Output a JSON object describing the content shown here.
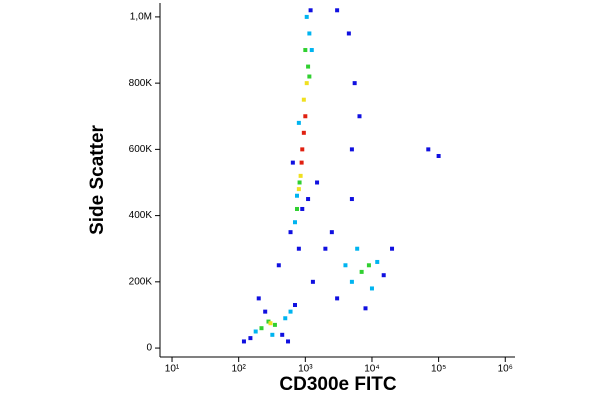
{
  "chart_data": {
    "type": "scatter",
    "x_label": "CD300e FITC",
    "y_label": "Side Scatter",
    "log_x": true,
    "xlim": [
      6.6,
      1400000
    ],
    "xticks": [
      {
        "value": 10,
        "label": "10¹"
      },
      {
        "value": 100,
        "label": "10²"
      },
      {
        "value": 1000,
        "label": "10³"
      },
      {
        "value": 10000,
        "label": "10⁴"
      },
      {
        "value": 100000,
        "label": "10⁵"
      },
      {
        "value": 1000000,
        "label": "10⁶"
      }
    ],
    "ylim": [
      -27000,
      1042000
    ],
    "yticks": [
      0,
      {
        "value": 200000,
        "label": "200K"
      },
      {
        "value": 400000,
        "label": "400K"
      },
      {
        "value": 600000,
        "label": "600K"
      },
      {
        "value": 800000,
        "label": "800K"
      },
      {
        "value": 1000000,
        "label": "1,0M"
      }
    ],
    "series": [
      {
        "color": "#1010e0",
        "x": [
          600,
          1200,
          150,
          700,
          450,
          3000,
          15000,
          8000,
          5000,
          5500,
          4500,
          5000,
          2000,
          1500,
          70000,
          100000,
          1300,
          2500,
          200,
          400,
          800,
          3000,
          120,
          20000,
          900,
          1100,
          650,
          6500,
          250,
          550
        ],
        "values": [
          350000,
          1020000,
          30000,
          130000,
          40000,
          150000,
          220000,
          120000,
          600000,
          800000,
          950000,
          450000,
          300000,
          500000,
          600000,
          580000,
          200000,
          350000,
          150000,
          250000,
          300000,
          1020000,
          20000,
          300000,
          420000,
          450000,
          560000,
          700000,
          110000,
          20000
        ]
      },
      {
        "color": "#00b4f0",
        "x": [
          700,
          1150,
          1050,
          180,
          500,
          600,
          5000,
          12000,
          6000,
          10000,
          4000,
          750,
          800,
          1250,
          320
        ],
        "values": [
          380000,
          950000,
          1000000,
          50000,
          90000,
          110000,
          200000,
          260000,
          300000,
          180000,
          250000,
          460000,
          680000,
          900000,
          40000
        ]
      },
      {
        "color": "#30d030",
        "x": [
          750,
          1100,
          1000,
          280,
          350,
          220,
          7000,
          9000,
          820,
          1150
        ],
        "values": [
          420000,
          850000,
          900000,
          80000,
          70000,
          60000,
          230000,
          250000,
          500000,
          820000
        ]
      },
      {
        "color": "#f0e020",
        "x": [
          850,
          950,
          800,
          1050,
          300
        ],
        "values": [
          520000,
          750000,
          480000,
          800000,
          75000
        ]
      },
      {
        "color": "#e02010",
        "x": [
          900,
          950,
          880,
          1000
        ],
        "values": [
          600000,
          650000,
          560000,
          700000
        ]
      }
    ]
  }
}
